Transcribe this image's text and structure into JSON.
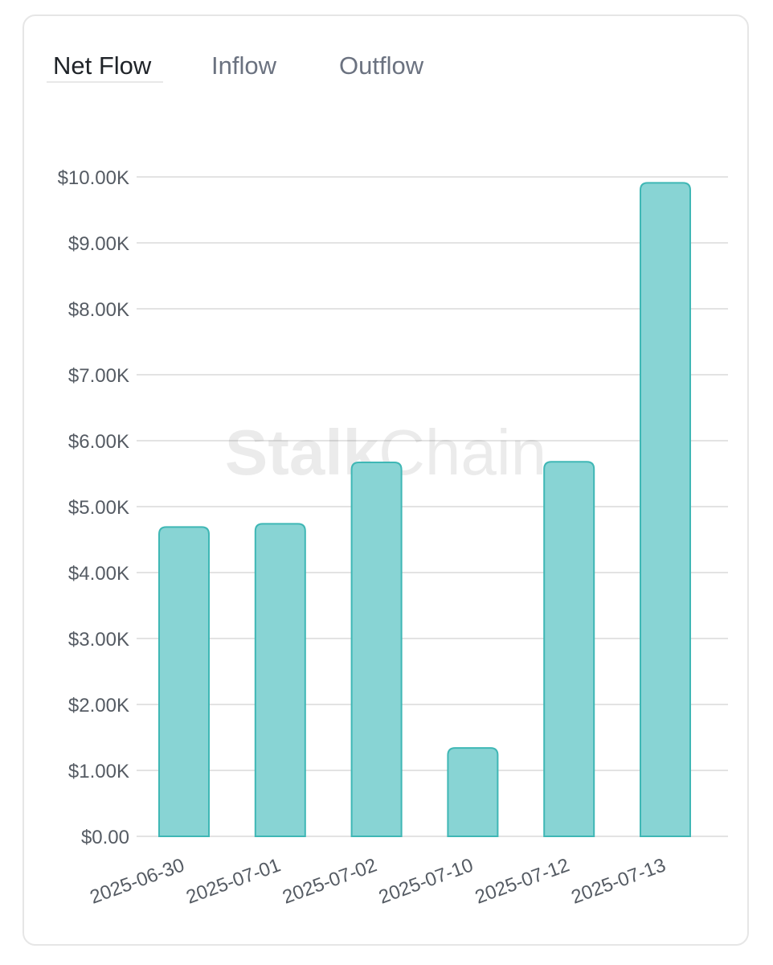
{
  "tabs": [
    {
      "label": "Net Flow",
      "active": true
    },
    {
      "label": "Inflow",
      "active": false
    },
    {
      "label": "Outflow",
      "active": false
    }
  ],
  "watermark": {
    "bold": "Stalk",
    "light": "Chain"
  },
  "colors": {
    "bar_fill": "#88d4d4",
    "bar_stroke": "#3fb7b5",
    "grid": "#e3e3e3",
    "active_tab": "#1f2328",
    "inactive_tab": "#6b7280"
  },
  "chart_data": {
    "type": "bar",
    "categories": [
      "2025-06-30",
      "2025-07-01",
      "2025-07-02",
      "2025-07-10",
      "2025-07-12",
      "2025-07-13"
    ],
    "values": [
      4690,
      4740,
      5670,
      1340,
      5680,
      9910
    ],
    "ylim": [
      0,
      10000
    ],
    "yticks": [
      0,
      1000,
      2000,
      3000,
      4000,
      5000,
      6000,
      7000,
      8000,
      9000,
      10000
    ],
    "ytick_labels": [
      "$0.00",
      "$1.00K",
      "$2.00K",
      "$3.00K",
      "$4.00K",
      "$5.00K",
      "$6.00K",
      "$7.00K",
      "$8.00K",
      "$9.00K",
      "$10.00K"
    ],
    "title": "",
    "xlabel": "",
    "ylabel": "",
    "grid": true,
    "legend": false
  }
}
